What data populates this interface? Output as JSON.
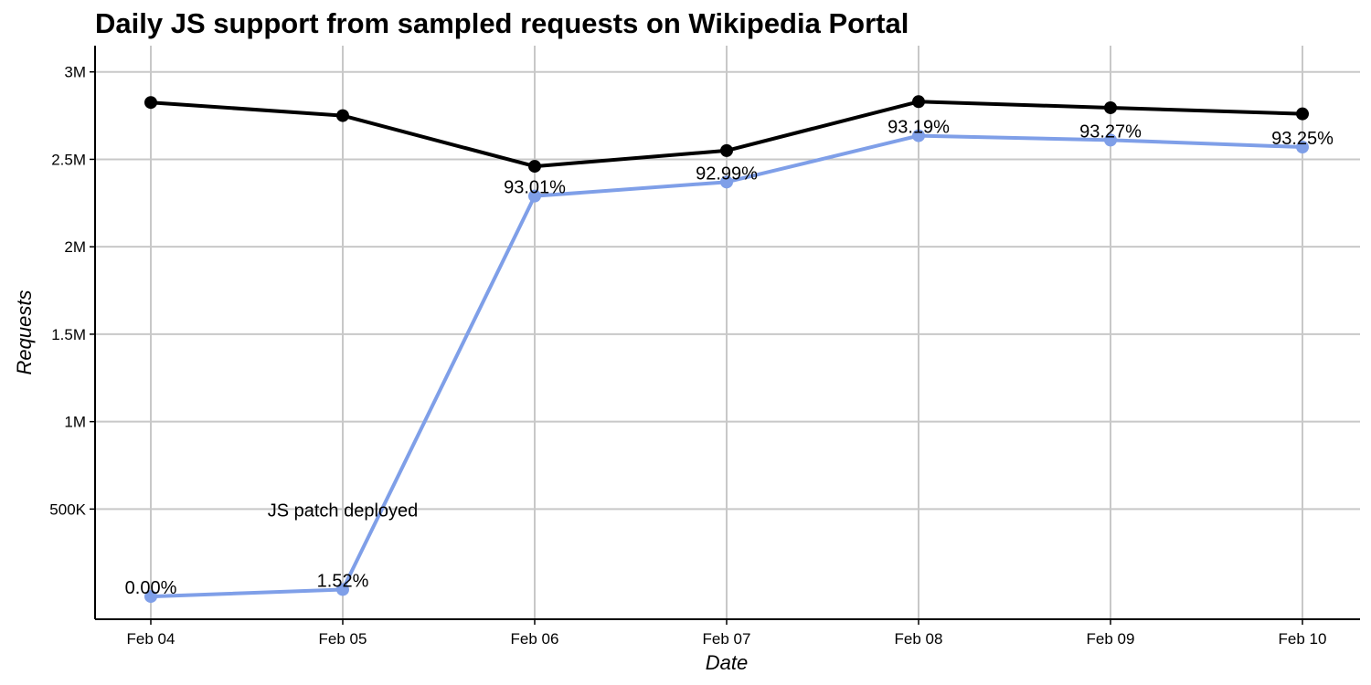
{
  "chart_data": {
    "type": "line",
    "title": "Daily JS support from sampled requests on Wikipedia Portal",
    "xlabel": "Date",
    "ylabel": "Requests",
    "categories": [
      "Feb 04",
      "Feb 05",
      "Feb 06",
      "Feb 07",
      "Feb 08",
      "Feb 09",
      "Feb 10"
    ],
    "ylim": [
      -130000,
      3150000
    ],
    "yticks": [
      {
        "value": 500000,
        "label": "500K"
      },
      {
        "value": 1000000,
        "label": "1M"
      },
      {
        "value": 1500000,
        "label": "1.5M"
      },
      {
        "value": 2000000,
        "label": "2M"
      },
      {
        "value": 2500000,
        "label": "2.5M"
      },
      {
        "value": 3000000,
        "label": "3M"
      }
    ],
    "grid": true,
    "series": [
      {
        "color": "#000000",
        "values": [
          2825000,
          2750000,
          2460000,
          2550000,
          2830000,
          2795000,
          2760000
        ]
      },
      {
        "color": "#7f9fe8",
        "values": [
          0,
          40000,
          2290000,
          2370000,
          2635000,
          2610000,
          2570000
        ],
        "labels": [
          "0.00%",
          "1.52%",
          "93.01%",
          "92.99%",
          "93.19%",
          "93.27%",
          "93.25%"
        ]
      }
    ],
    "annotations": [
      {
        "text": "JS patch deployed",
        "x": "Feb 05",
        "y": 500000
      }
    ]
  }
}
